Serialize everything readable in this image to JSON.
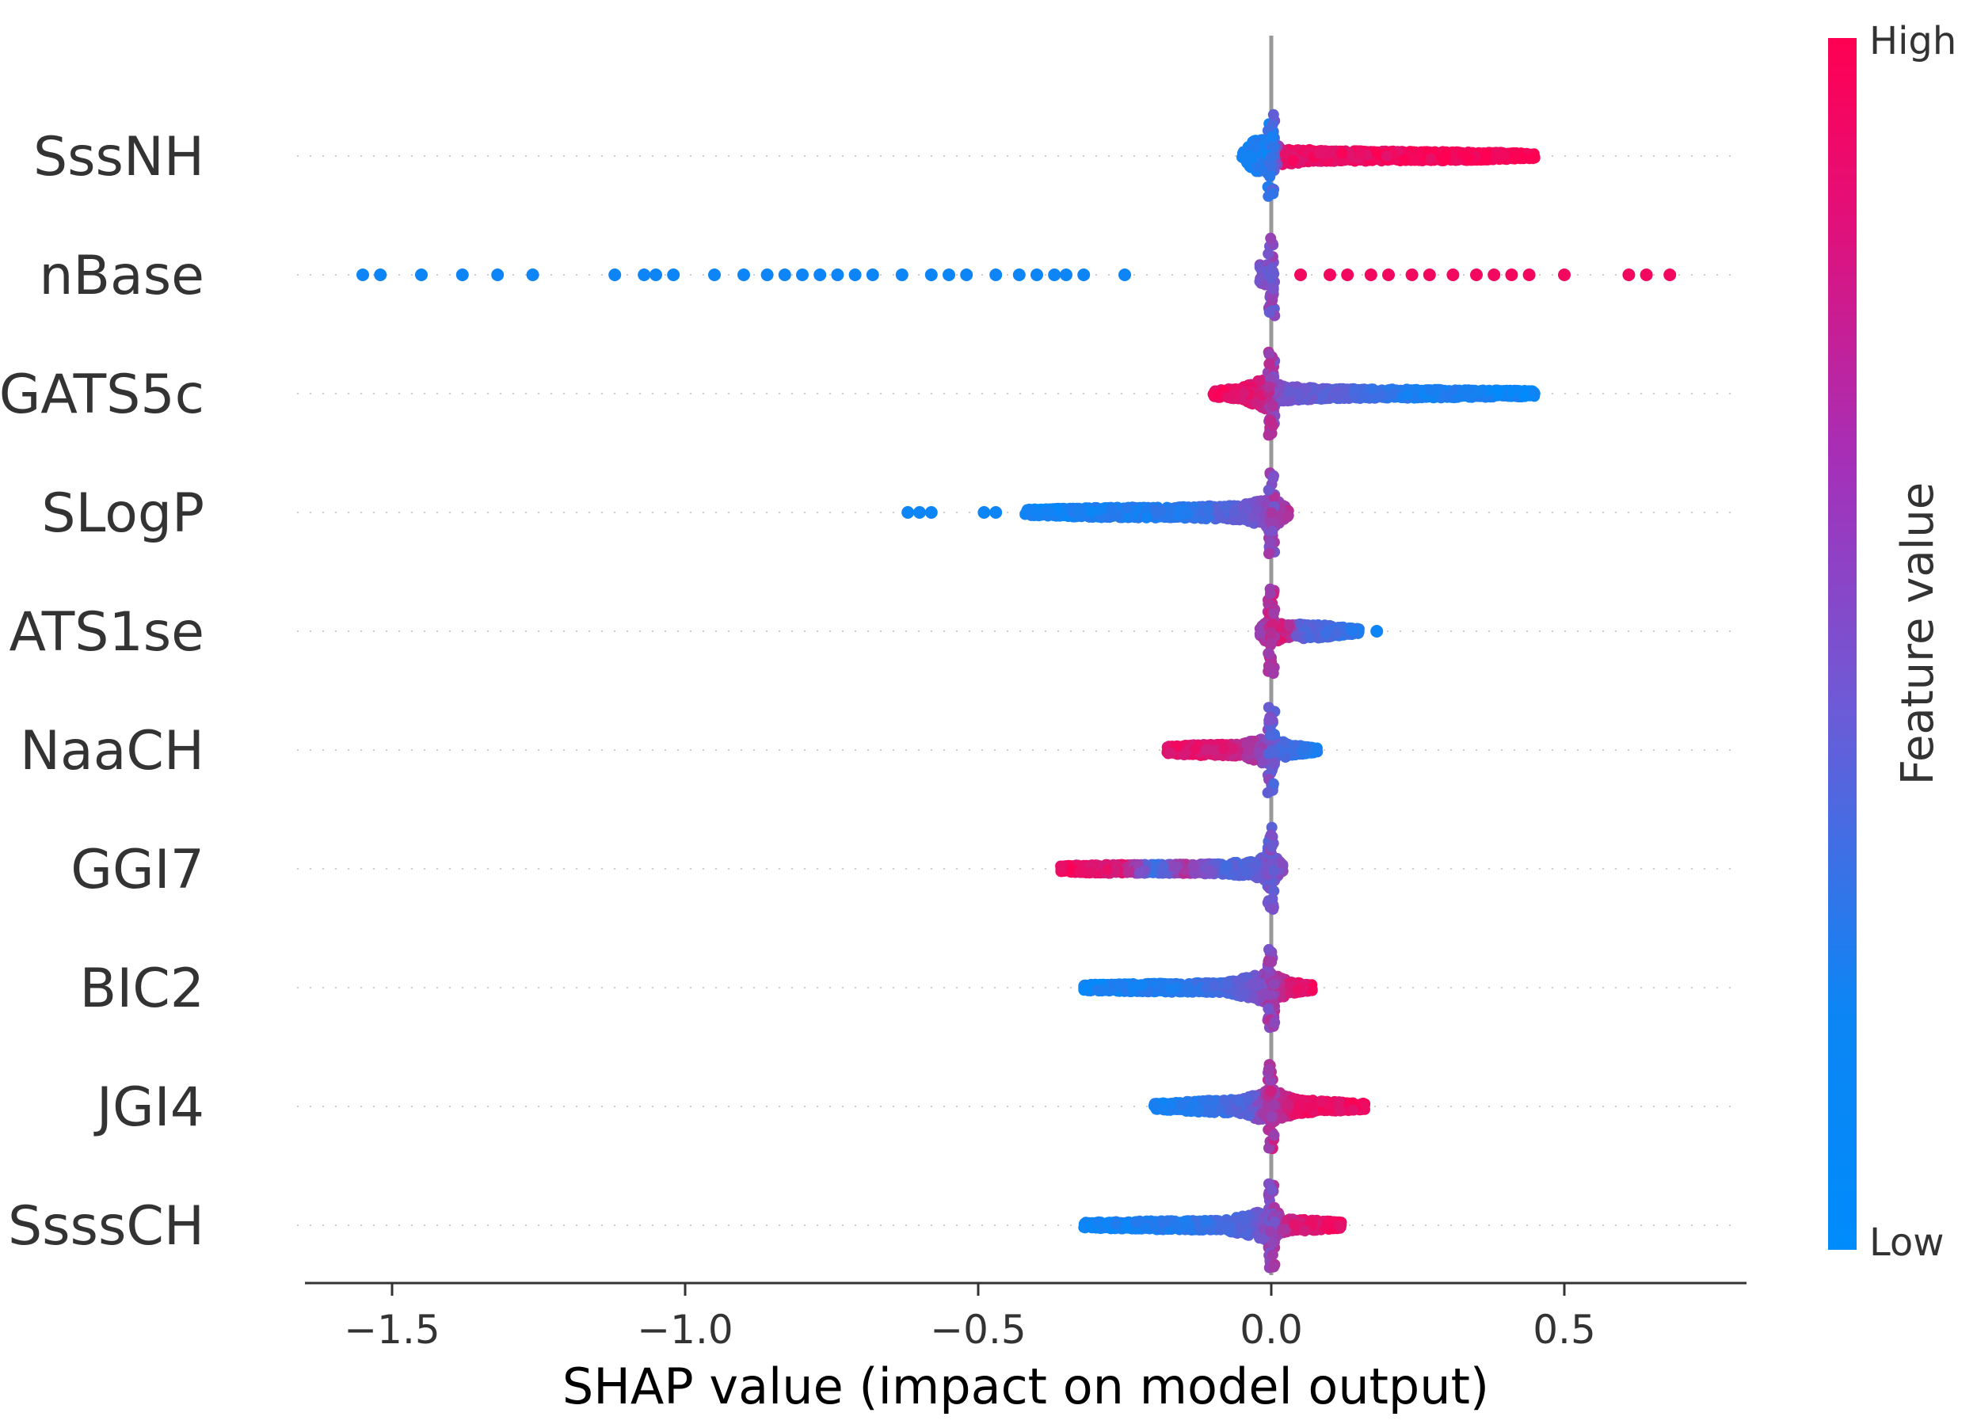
{
  "chart_data": {
    "type": "scatter",
    "subtype": "shap-beeswarm",
    "xlabel": "SHAP value (impact on model output)",
    "xlim": [
      -1.65,
      0.8
    ],
    "xticks": [
      -1.5,
      -1.0,
      -0.5,
      0.0,
      0.5
    ],
    "xtick_labels": [
      "−1.5",
      "−1.0",
      "−0.5",
      "0.0",
      "0.5"
    ],
    "colorbar": {
      "title": "Feature value",
      "high_label": "High",
      "low_label": "Low",
      "high_color": "#ff0052",
      "low_color": "#008bfb"
    },
    "features": [
      {
        "name": "SssNH",
        "range": [
          -0.05,
          0.45
        ],
        "density": [
          [
            -0.05,
            0.5
          ],
          [
            -0.03,
            2.5
          ],
          [
            -0.01,
            3.0
          ],
          [
            0.02,
            1.4
          ],
          [
            0.08,
            0.9
          ],
          [
            0.2,
            0.8
          ],
          [
            0.35,
            0.7
          ],
          [
            0.45,
            0.4
          ]
        ],
        "color_stops": [
          [
            -0.05,
            0.05
          ],
          [
            0.0,
            0.15
          ],
          [
            0.02,
            0.9
          ],
          [
            0.45,
            1.0
          ]
        ],
        "outliers": []
      },
      {
        "name": "nBase",
        "range": [
          -0.02,
          0.0
        ],
        "density": [
          [
            -0.02,
            1.6
          ],
          [
            0.0,
            1.6
          ]
        ],
        "color_stops": [
          [
            -0.02,
            0.5
          ],
          [
            0.0,
            0.5
          ]
        ],
        "outliers": [
          [
            -1.55,
            0.05
          ],
          [
            -1.52,
            0.05
          ],
          [
            -1.45,
            0.05
          ],
          [
            -1.38,
            0.05
          ],
          [
            -1.32,
            0.05
          ],
          [
            -1.26,
            0.05
          ],
          [
            -1.12,
            0.05
          ],
          [
            -1.07,
            0.05
          ],
          [
            -1.05,
            0.05
          ],
          [
            -1.02,
            0.05
          ],
          [
            -0.95,
            0.05
          ],
          [
            -0.9,
            0.05
          ],
          [
            -0.86,
            0.05
          ],
          [
            -0.83,
            0.05
          ],
          [
            -0.8,
            0.05
          ],
          [
            -0.77,
            0.05
          ],
          [
            -0.74,
            0.05
          ],
          [
            -0.71,
            0.05
          ],
          [
            -0.68,
            0.05
          ],
          [
            -0.63,
            0.05
          ],
          [
            -0.58,
            0.05
          ],
          [
            -0.55,
            0.05
          ],
          [
            -0.52,
            0.05
          ],
          [
            -0.47,
            0.05
          ],
          [
            -0.43,
            0.05
          ],
          [
            -0.4,
            0.05
          ],
          [
            -0.37,
            0.05
          ],
          [
            -0.35,
            0.05
          ],
          [
            -0.32,
            0.05
          ],
          [
            -0.25,
            0.05
          ],
          [
            0.05,
            0.95
          ],
          [
            0.1,
            0.95
          ],
          [
            0.13,
            0.95
          ],
          [
            0.17,
            0.95
          ],
          [
            0.2,
            0.95
          ],
          [
            0.24,
            0.95
          ],
          [
            0.27,
            0.95
          ],
          [
            0.31,
            0.95
          ],
          [
            0.35,
            0.95
          ],
          [
            0.38,
            0.95
          ],
          [
            0.41,
            0.95
          ],
          [
            0.44,
            0.95
          ],
          [
            0.5,
            0.95
          ],
          [
            0.61,
            0.95
          ],
          [
            0.64,
            0.95
          ],
          [
            0.68,
            0.95
          ]
        ]
      },
      {
        "name": "GATS5c",
        "range": [
          -0.1,
          0.45
        ],
        "density": [
          [
            -0.1,
            0.5
          ],
          [
            -0.05,
            1.0
          ],
          [
            -0.01,
            2.5
          ],
          [
            0.02,
            1.2
          ],
          [
            0.1,
            0.8
          ],
          [
            0.25,
            0.7
          ],
          [
            0.45,
            0.5
          ]
        ],
        "color_stops": [
          [
            -0.1,
            0.95
          ],
          [
            -0.02,
            0.85
          ],
          [
            0.02,
            0.45
          ],
          [
            0.12,
            0.35
          ],
          [
            0.25,
            0.1
          ],
          [
            0.45,
            0.05
          ]
        ],
        "outliers": []
      },
      {
        "name": "SLogP",
        "range": [
          -0.42,
          0.03
        ],
        "density": [
          [
            -0.42,
            0.5
          ],
          [
            -0.3,
            0.8
          ],
          [
            -0.15,
            0.9
          ],
          [
            -0.05,
            1.2
          ],
          [
            0.0,
            2.6
          ],
          [
            0.03,
            0.6
          ]
        ],
        "color_stops": [
          [
            -0.42,
            0.05
          ],
          [
            -0.15,
            0.15
          ],
          [
            -0.05,
            0.4
          ],
          [
            0.0,
            0.55
          ],
          [
            0.03,
            0.7
          ]
        ],
        "outliers": [
          [
            -0.62,
            0.05
          ],
          [
            -0.6,
            0.05
          ],
          [
            -0.58,
            0.05
          ],
          [
            -0.49,
            0.05
          ],
          [
            -0.47,
            0.05
          ]
        ]
      },
      {
        "name": "ATS1se",
        "range": [
          -0.02,
          0.15
        ],
        "density": [
          [
            -0.02,
            0.6
          ],
          [
            0.0,
            2.6
          ],
          [
            0.02,
            1.0
          ],
          [
            0.06,
            1.2
          ],
          [
            0.09,
            1.0
          ],
          [
            0.15,
            0.4
          ]
        ],
        "color_stops": [
          [
            -0.02,
            0.6
          ],
          [
            0.0,
            0.7
          ],
          [
            0.02,
            0.85
          ],
          [
            0.05,
            0.35
          ],
          [
            0.15,
            0.15
          ]
        ],
        "outliers": [
          [
            0.18,
            0.05
          ]
        ]
      },
      {
        "name": "NaaCH",
        "range": [
          -0.18,
          0.08
        ],
        "density": [
          [
            -0.18,
            0.6
          ],
          [
            -0.12,
            0.9
          ],
          [
            -0.05,
            1.0
          ],
          [
            0.0,
            2.6
          ],
          [
            0.03,
            0.9
          ],
          [
            0.08,
            0.4
          ]
        ],
        "color_stops": [
          [
            -0.18,
            0.9
          ],
          [
            -0.08,
            0.85
          ],
          [
            -0.02,
            0.6
          ],
          [
            0.01,
            0.3
          ],
          [
            0.08,
            0.1
          ]
        ],
        "outliers": []
      },
      {
        "name": "GGI7",
        "range": [
          -0.36,
          0.02
        ],
        "density": [
          [
            -0.36,
            0.5
          ],
          [
            -0.3,
            0.7
          ],
          [
            -0.2,
            0.7
          ],
          [
            -0.1,
            0.8
          ],
          [
            -0.03,
            1.2
          ],
          [
            0.0,
            2.6
          ],
          [
            0.02,
            0.7
          ]
        ],
        "color_stops": [
          [
            -0.36,
            0.95
          ],
          [
            -0.25,
            0.85
          ],
          [
            -0.2,
            0.2
          ],
          [
            -0.15,
            0.7
          ],
          [
            -0.08,
            0.3
          ],
          [
            -0.02,
            0.4
          ],
          [
            0.02,
            0.55
          ]
        ],
        "outliers": []
      },
      {
        "name": "BIC2",
        "range": [
          -0.32,
          0.07
        ],
        "density": [
          [
            -0.32,
            0.5
          ],
          [
            -0.2,
            0.7
          ],
          [
            -0.08,
            0.8
          ],
          [
            0.0,
            2.6
          ],
          [
            0.03,
            1.0
          ],
          [
            0.07,
            0.5
          ]
        ],
        "color_stops": [
          [
            -0.32,
            0.05
          ],
          [
            -0.15,
            0.15
          ],
          [
            -0.05,
            0.35
          ],
          [
            0.0,
            0.6
          ],
          [
            0.03,
            0.85
          ],
          [
            0.07,
            0.95
          ]
        ],
        "outliers": []
      },
      {
        "name": "JGI4",
        "range": [
          -0.2,
          0.16
        ],
        "density": [
          [
            -0.2,
            0.5
          ],
          [
            -0.1,
            1.0
          ],
          [
            -0.05,
            1.2
          ],
          [
            0.0,
            2.8
          ],
          [
            0.04,
            1.2
          ],
          [
            0.1,
            0.8
          ],
          [
            0.16,
            0.5
          ]
        ],
        "color_stops": [
          [
            -0.2,
            0.05
          ],
          [
            -0.1,
            0.2
          ],
          [
            -0.04,
            0.35
          ],
          [
            0.0,
            0.7
          ],
          [
            0.05,
            0.9
          ],
          [
            0.16,
            0.95
          ]
        ],
        "outliers": []
      },
      {
        "name": "SsssCH",
        "range": [
          -0.32,
          0.12
        ],
        "density": [
          [
            -0.32,
            0.5
          ],
          [
            -0.2,
            0.7
          ],
          [
            -0.08,
            0.8
          ],
          [
            0.0,
            2.6
          ],
          [
            0.03,
            1.0
          ],
          [
            0.08,
            0.8
          ],
          [
            0.12,
            0.5
          ]
        ],
        "color_stops": [
          [
            -0.32,
            0.05
          ],
          [
            -0.15,
            0.15
          ],
          [
            -0.05,
            0.3
          ],
          [
            0.0,
            0.55
          ],
          [
            0.04,
            0.85
          ],
          [
            0.12,
            0.95
          ]
        ],
        "outliers": []
      }
    ]
  }
}
